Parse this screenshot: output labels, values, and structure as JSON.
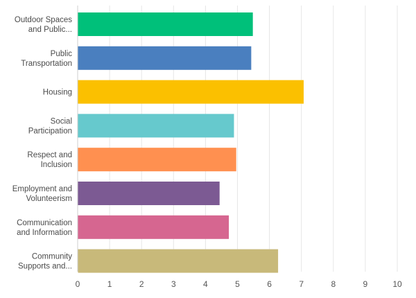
{
  "chart_data": {
    "type": "bar",
    "orientation": "horizontal",
    "categories": [
      [
        "Outdoor Spaces",
        "and Public..."
      ],
      [
        "Public",
        "Transportation"
      ],
      [
        "Housing"
      ],
      [
        "Social",
        "Participation"
      ],
      [
        "Respect and",
        "Inclusion"
      ],
      [
        "Employment and",
        "Volunteerism"
      ],
      [
        "Communication",
        "and Information"
      ],
      [
        "Community",
        "Supports and..."
      ]
    ],
    "values": [
      5.47,
      5.42,
      7.06,
      4.88,
      4.95,
      4.43,
      4.72,
      6.26
    ],
    "colors": [
      "#00c07a",
      "#4a7fbf",
      "#fbc000",
      "#66c9cd",
      "#ff9050",
      "#7c5a93",
      "#d66690",
      "#c8b97a"
    ],
    "xlim": [
      0,
      10
    ],
    "xticks": [
      0,
      1,
      2,
      3,
      4,
      5,
      6,
      7,
      8,
      9,
      10
    ],
    "grid": true,
    "title": "",
    "xlabel": "",
    "ylabel": ""
  }
}
